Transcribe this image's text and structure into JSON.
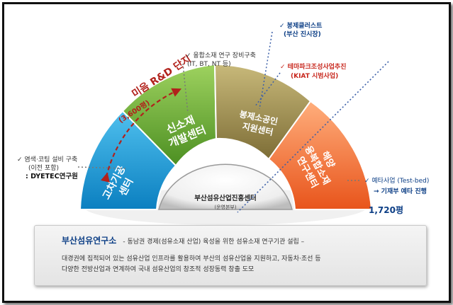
{
  "segments": {
    "seg1": [
      "고차기공",
      "센터"
    ],
    "seg2": [
      "신소재",
      "개발센터"
    ],
    "seg3": [
      "봉제소공인",
      "지원센터"
    ],
    "seg4": [
      "해양",
      "융복합소재",
      "연구센터"
    ]
  },
  "center": {
    "title": "부산섬유산업진흥센터",
    "subtitle": "(운영본부)"
  },
  "arc": {
    "title": "미음 R&D 단지",
    "area": "(3,600평)"
  },
  "notes": {
    "dyetec": {
      "line1": "✓ 염색·코팅 설비 구축",
      "line2": "(이전 포함)",
      "line3": ": DYETEC연구원"
    },
    "fusion": {
      "line1": "✓ 융합소재 연구 장비구축",
      "line2": "(IT, BT, NT 등)"
    },
    "sewing": {
      "line1": "✓ 봉제클러스트",
      "line2": "(부산 진시장)"
    },
    "theme": {
      "line1": "✓ 테마파크조성사업추진",
      "line2": "(KIAT 시범사업)"
    },
    "pre_feasibility": {
      "line1": "✓ 예타사업 (Test-bed)",
      "line2": "→ 기재부 예타 진행"
    },
    "area_1720": "1,720평"
  },
  "panel": {
    "title": "부산섬유연구소",
    "subtitle": "- 동남권 경제(섬유소재 산업) 육성을 위한 섬유소재 연구기관 설립 –",
    "desc1": "대경권에 집적되어 있는 섬유산업 인프라를 활용하여 부산의 섬유산업을 지원하고, 자동차·조선 등",
    "desc2": "다양한 전방산업과 연계하여 국내 섬유산업의 창조적 성장동력 창출 도모"
  },
  "colors": {
    "seg1": "#1a9ad6",
    "seg2": "#6fae35",
    "seg3": "#9c8c52",
    "seg4": "#f36f2f",
    "arc_text": "#b1211b",
    "title_blue": "#0d3f86",
    "theme_red": "#c8281e"
  }
}
